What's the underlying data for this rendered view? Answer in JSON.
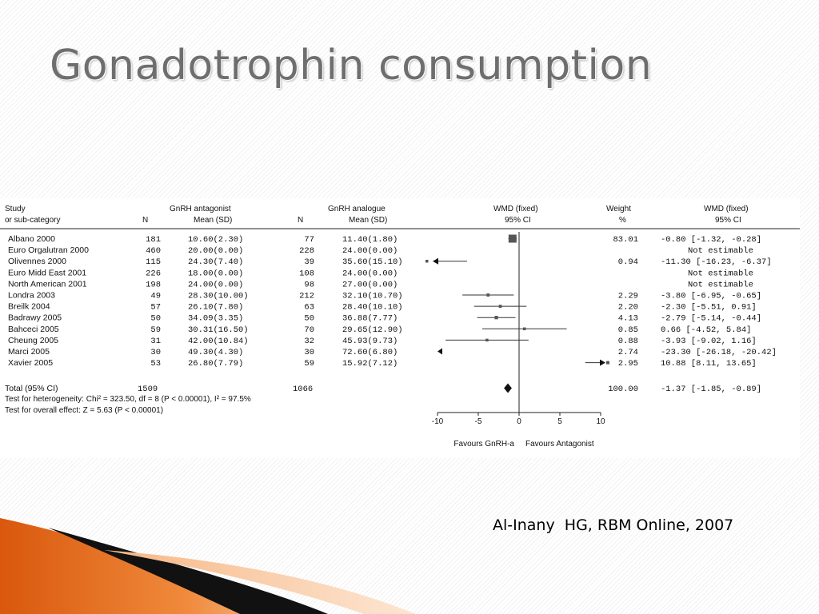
{
  "slide": {
    "title": "Gonadotrophin consumption",
    "citation": "Al-Inany  HG, RBM Online, 2007"
  },
  "chart_data": {
    "type": "forest",
    "headers": {
      "study_1": "Study",
      "study_2": "or sub-category",
      "g1_name": "GnRH antagonist",
      "g1_n": "N",
      "g1_mean": "Mean (SD)",
      "g2_name": "GnRH analogue",
      "g2_n": "N",
      "g2_mean": "Mean (SD)",
      "plot_1": "WMD (fixed)",
      "plot_2": "95% CI",
      "weight_1": "Weight",
      "weight_2": "%",
      "wmd_1": "WMD (fixed)",
      "wmd_2": "95% CI"
    },
    "rows": [
      {
        "study": "Albano 2000",
        "n1": "181",
        "ms1": "10.60(2.30)",
        "n2": "77",
        "ms2": "11.40(1.80)",
        "weight": "83.01",
        "wmd_text": "-0.80 [-1.32, -0.28]",
        "est": -0.8,
        "lo": -1.32,
        "hi": -0.28,
        "w": 83.01
      },
      {
        "study": "Euro Orgalutran 2000",
        "n1": "460",
        "ms1": "20.00(0.00)",
        "n2": "228",
        "ms2": "24.00(0.00)",
        "weight": "",
        "wmd_text": "Not estimable",
        "est": null,
        "lo": null,
        "hi": null,
        "w": 0
      },
      {
        "study": "Olivennes 2000",
        "n1": "115",
        "ms1": "24.30(7.40)",
        "n2": "39",
        "ms2": "35.60(15.10)",
        "weight": "0.94",
        "wmd_text": "-11.30 [-16.23, -6.37]",
        "est": -11.3,
        "lo": -16.23,
        "hi": -6.37,
        "w": 0.94
      },
      {
        "study": "Euro Midd East 2001",
        "n1": "226",
        "ms1": "18.00(0.00)",
        "n2": "108",
        "ms2": "24.00(0.00)",
        "weight": "",
        "wmd_text": "Not estimable",
        "est": null,
        "lo": null,
        "hi": null,
        "w": 0
      },
      {
        "study": "North American 2001",
        "n1": "198",
        "ms1": "24.00(0.00)",
        "n2": "98",
        "ms2": "27.00(0.00)",
        "weight": "",
        "wmd_text": "Not estimable",
        "est": null,
        "lo": null,
        "hi": null,
        "w": 0
      },
      {
        "study": "Londra 2003",
        "n1": "49",
        "ms1": "28.30(10.00)",
        "n2": "212",
        "ms2": "32.10(10.70)",
        "weight": "2.29",
        "wmd_text": "-3.80 [-6.95, -0.65]",
        "est": -3.8,
        "lo": -6.95,
        "hi": -0.65,
        "w": 2.29
      },
      {
        "study": "Breilk 2004",
        "n1": "57",
        "ms1": "26.10(7.80)",
        "n2": "63",
        "ms2": "28.40(10.10)",
        "weight": "2.20",
        "wmd_text": "-2.30 [-5.51, 0.91]",
        "est": -2.3,
        "lo": -5.51,
        "hi": 0.91,
        "w": 2.2
      },
      {
        "study": "Badrawy 2005",
        "n1": "50",
        "ms1": "34.09(3.35)",
        "n2": "50",
        "ms2": "36.88(7.77)",
        "weight": "4.13",
        "wmd_text": "-2.79 [-5.14, -0.44]",
        "est": -2.79,
        "lo": -5.14,
        "hi": -0.44,
        "w": 4.13
      },
      {
        "study": "Bahceci 2005",
        "n1": "59",
        "ms1": "30.31(16.50)",
        "n2": "70",
        "ms2": "29.65(12.90)",
        "weight": "0.85",
        "wmd_text": "0.66 [-4.52, 5.84]",
        "est": 0.66,
        "lo": -4.52,
        "hi": 5.84,
        "w": 0.85
      },
      {
        "study": "Cheung 2005",
        "n1": "31",
        "ms1": "42.00(10.84)",
        "n2": "32",
        "ms2": "45.93(9.73)",
        "weight": "0.88",
        "wmd_text": "-3.93 [-9.02, 1.16]",
        "est": -3.93,
        "lo": -9.02,
        "hi": 1.16,
        "w": 0.88
      },
      {
        "study": "Marci 2005",
        "n1": "30",
        "ms1": "49.30(4.30)",
        "n2": "30",
        "ms2": "72.60(6.80)",
        "weight": "2.74",
        "wmd_text": "-23.30 [-26.18, -20.42]",
        "est": -23.3,
        "lo": -26.18,
        "hi": -20.42,
        "w": 2.74
      },
      {
        "study": "Xavier 2005",
        "n1": "53",
        "ms1": "26.80(7.79)",
        "n2": "59",
        "ms2": "15.92(7.12)",
        "weight": "2.95",
        "wmd_text": "10.88 [8.11, 13.65]",
        "est": 10.88,
        "lo": 8.11,
        "hi": 13.65,
        "w": 2.95
      }
    ],
    "total": {
      "label": "Total (95% CI)",
      "n1": "1509",
      "n2": "1066",
      "weight": "100.00",
      "wmd_text": "-1.37 [-1.85, -0.89]",
      "est": -1.37,
      "lo": -1.85,
      "hi": -0.89
    },
    "heterogeneity": "Test for heterogeneity: Chi² = 323.50, df = 8 (P < 0.00001), I² = 97.5%",
    "overall_effect": "Test for overall effect: Z = 5.63 (P < 0.00001)",
    "xlim": [
      -10,
      10
    ],
    "ticks": [
      -10,
      -5,
      0,
      5,
      10
    ],
    "tick_labels": [
      "-10",
      "-5",
      "0",
      "5",
      "10"
    ],
    "favours_left": "Favours GnRH-a",
    "favours_right": "Favours Antagonist",
    "colors": {
      "marker": "#555555",
      "line": "#333333",
      "text": "#111111"
    }
  }
}
